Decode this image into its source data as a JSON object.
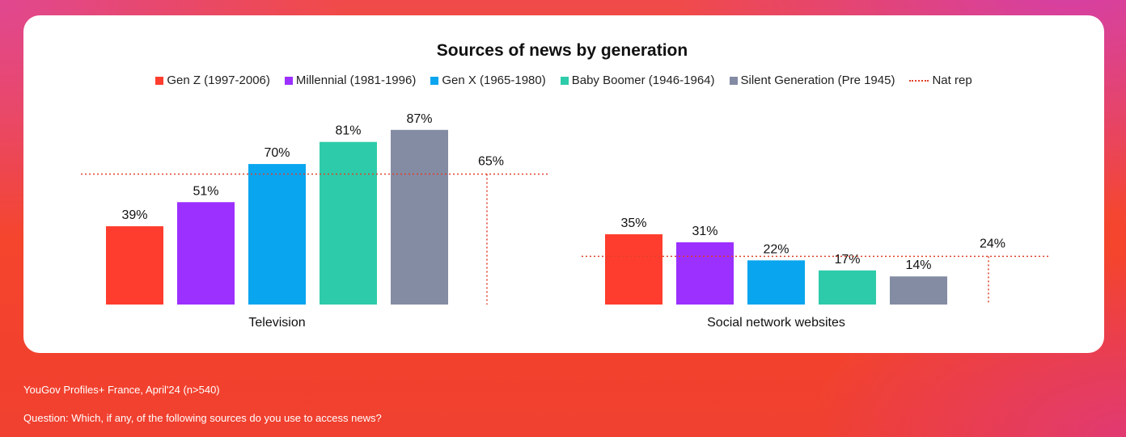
{
  "chart_data": {
    "type": "bar",
    "title": "Sources of news by generation",
    "categories": [
      "Television",
      "Social network websites"
    ],
    "series": [
      {
        "name": "Gen Z (1997-2006)",
        "color": "#ff3d2e",
        "values": [
          39,
          35
        ]
      },
      {
        "name": "Millennial (1981-1996)",
        "color": "#9b30ff",
        "values": [
          51,
          31
        ]
      },
      {
        "name": "Gen X (1965-1980)",
        "color": "#0aa5ef",
        "values": [
          70,
          22
        ]
      },
      {
        "name": "Baby Boomer (1946-1964)",
        "color": "#2ecbaa",
        "values": [
          81,
          17
        ]
      },
      {
        "name": "Silent Generation (Pre 1945)",
        "color": "#838ca3",
        "values": [
          87,
          14
        ]
      }
    ],
    "reference": {
      "name": "Nat rep",
      "color": "#e0402a",
      "values": [
        65,
        24
      ]
    },
    "value_suffix": "%",
    "ylim": [
      0,
      100
    ],
    "legend_position": "top",
    "grid": false
  },
  "footer": {
    "source": "YouGov Profiles+ France, April'24 (n>540)",
    "question": "Question: Which, if any, of the following sources do you use to access news?"
  }
}
